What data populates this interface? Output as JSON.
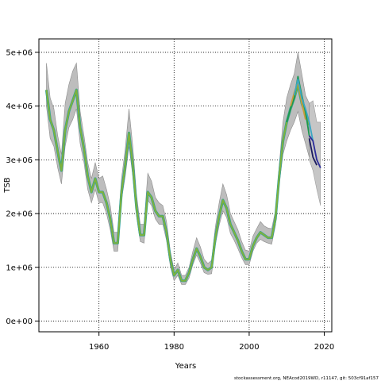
{
  "chart_data": {
    "type": "line",
    "title": "",
    "xlabel": "Years",
    "ylabel": "TSB",
    "xlim": [
      1944,
      2022
    ],
    "ylim": [
      -200000,
      5250000
    ],
    "grid": true,
    "xticks": [
      1960,
      1980,
      2000,
      2020
    ],
    "xtick_labels": [
      "1960",
      "1980",
      "2000",
      "2020"
    ],
    "yticks": [
      0,
      1000000,
      2000000,
      3000000,
      4000000,
      5000000
    ],
    "ytick_labels": [
      "0e+00",
      "1e+06",
      "2e+06",
      "3e+06",
      "4e+06",
      "5e+06"
    ],
    "footer": "stockassessment.org, NEAcod2019WD, r11147, git: 503cf91af157",
    "colors": {
      "band": "#bdbdbd",
      "band_edge": "#8c8c8c",
      "retro": [
        "#7fb23c",
        "#2aa198",
        "#1a9850",
        "#3aa6c4",
        "#2c2c9a",
        "#c89b3c"
      ]
    },
    "series": [
      {
        "name": "",
        "x": [
          1946,
          1947,
          1948,
          1949,
          1950,
          1951,
          1952,
          1953,
          1954,
          1955,
          1956,
          1957,
          1958,
          1959,
          1960,
          1961,
          1962,
          1963,
          1964,
          1965,
          1966,
          1967,
          1968,
          1969,
          1970,
          1971,
          1972,
          1973,
          1974,
          1975,
          1976,
          1977,
          1978,
          1979,
          1980,
          1981,
          1982,
          1983,
          1984,
          1985,
          1986,
          1987,
          1988,
          1989,
          1990,
          1991,
          1992,
          1993,
          1994,
          1995,
          1996,
          1997,
          1998,
          1999,
          2000,
          2001,
          2002,
          2003,
          2004,
          2005,
          2006,
          2007,
          2008,
          2009,
          2010,
          2011,
          2012,
          2013,
          2014,
          2015,
          2016
        ],
        "y": [
          4300000,
          3750000,
          3550000,
          3150000,
          2800000,
          3550000,
          3900000,
          4100000,
          4300000,
          3600000,
          3200000,
          2700000,
          2400000,
          2650000,
          2400000,
          2400000,
          2200000,
          1900000,
          1450000,
          1450000,
          2400000,
          2900000,
          3500000,
          2900000,
          2100000,
          1600000,
          1600000,
          2400000,
          2300000,
          2050000,
          1950000,
          1950000,
          1650000,
          1150000,
          850000,
          950000,
          750000,
          750000,
          900000,
          1150000,
          1350000,
          1200000,
          1000000,
          950000,
          1000000,
          1550000,
          1950000,
          2250000,
          2100000,
          1800000,
          1650000,
          1500000,
          1300000,
          1150000,
          1150000,
          1400000,
          1550000,
          1650000,
          1600000,
          1550000,
          1550000,
          1900000,
          2700000,
          3350000,
          3700000,
          3950000,
          4150000,
          4400000,
          4050000,
          3850000,
          3650000
        ],
        "lower": [
          4000000,
          3400000,
          3250000,
          2850000,
          2550000,
          3250000,
          3600000,
          3750000,
          3950000,
          3300000,
          2950000,
          2450000,
          2200000,
          2450000,
          2200000,
          2200000,
          2000000,
          1700000,
          1300000,
          1300000,
          2250000,
          2700000,
          3250000,
          2700000,
          1950000,
          1480000,
          1450000,
          2250000,
          2150000,
          1900000,
          1800000,
          1800000,
          1500000,
          1020000,
          750000,
          850000,
          680000,
          680000,
          800000,
          1050000,
          1230000,
          1080000,
          900000,
          870000,
          880000,
          1420000,
          1780000,
          2050000,
          1930000,
          1630000,
          1500000,
          1350000,
          1180000,
          1050000,
          1050000,
          1300000,
          1450000,
          1520000,
          1480000,
          1450000,
          1430000,
          1780000,
          2550000,
          3100000,
          3350000,
          3550000,
          3700000,
          3900000,
          3550000,
          3300000,
          3050000
        ],
        "upper": [
          4800000,
          4150000,
          3950000,
          3450000,
          3100000,
          4050000,
          4400000,
          4650000,
          4800000,
          3900000,
          3450000,
          2950000,
          2650000,
          2950000,
          2650000,
          2700000,
          2450000,
          2150000,
          1650000,
          1650000,
          2650000,
          3200000,
          3950000,
          3250000,
          2350000,
          1800000,
          1800000,
          2750000,
          2600000,
          2300000,
          2200000,
          2150000,
          1850000,
          1300000,
          950000,
          1080000,
          850000,
          850000,
          1000000,
          1300000,
          1550000,
          1380000,
          1150000,
          1070000,
          1130000,
          1750000,
          2200000,
          2550000,
          2350000,
          2000000,
          1850000,
          1700000,
          1480000,
          1320000,
          1300000,
          1580000,
          1720000,
          1850000,
          1770000,
          1730000,
          1720000,
          2050000,
          2900000,
          3700000,
          4150000,
          4400000,
          4600000,
          5000000,
          4600000,
          4200000,
          4050000
        ]
      }
    ],
    "retro_tails": [
      {
        "x": [
          2010,
          2011,
          2012,
          2013,
          2014,
          2015,
          2016
        ],
        "y": [
          3700000,
          3950000,
          4150000,
          4550000,
          4200000,
          3900000,
          3450000
        ]
      },
      {
        "x": [
          2011,
          2012,
          2013,
          2014,
          2015
        ],
        "y": [
          4000000,
          4250000,
          4450000,
          4050000,
          3750000
        ]
      },
      {
        "x": [
          2012,
          2013,
          2014,
          2015,
          2016,
          2017
        ],
        "y": [
          4200000,
          4500000,
          4150000,
          3950000,
          3700000,
          3350000
        ]
      },
      {
        "x": [
          2016,
          2017,
          2018,
          2019
        ],
        "y": [
          3450000,
          3350000,
          3000000,
          2850000
        ]
      },
      {
        "x": [
          2016,
          2017,
          2018
        ],
        "y": [
          3400000,
          3050000,
          2900000
        ]
      }
    ],
    "tail_band": {
      "x": [
        2016,
        2017,
        2018,
        2019
      ],
      "lower": [
        3000000,
        2800000,
        2450000,
        2150000
      ],
      "upper": [
        4050000,
        4100000,
        3700000,
        3700000
      ]
    }
  }
}
